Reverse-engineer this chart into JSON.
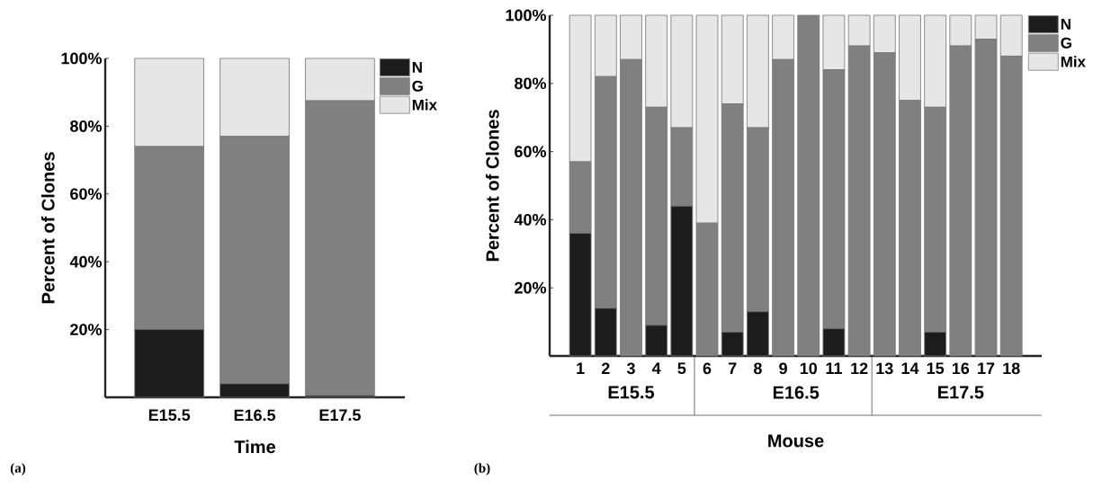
{
  "chart_data": [
    {
      "type": "bar",
      "stacked": true,
      "ylabel": "Percent of Clones",
      "xlabel": "Time",
      "categories": [
        "E15.5",
        "E16.5",
        "E17.5"
      ],
      "series": [
        {
          "name": "N",
          "color": "#1c1c1c",
          "values": [
            20,
            4,
            0.5
          ]
        },
        {
          "name": "G",
          "color": "#808080",
          "values": [
            54,
            73,
            87
          ]
        },
        {
          "name": "Mix",
          "color": "#e6e6e6",
          "values": [
            26,
            23,
            12.5
          ]
        }
      ],
      "ylim": [
        0,
        100
      ],
      "yticks": [
        {
          "value": 20,
          "label": "20%"
        },
        {
          "value": 40,
          "label": "40%"
        },
        {
          "value": 60,
          "label": "60%"
        },
        {
          "value": 80,
          "label": "80%"
        },
        {
          "value": 100,
          "label": "100%"
        }
      ],
      "legend": "top right",
      "annotations": [
        "(a)"
      ]
    },
    {
      "type": "bar",
      "stacked": true,
      "ylabel": "Percent of Clones",
      "xlabel": "Mouse",
      "categories": [
        "1",
        "2",
        "3",
        "4",
        "5",
        "6",
        "7",
        "8",
        "9",
        "10",
        "11",
        "12",
        "13",
        "14",
        "15",
        "16",
        "17",
        "18"
      ],
      "series": [
        {
          "name": "N",
          "color": "#1c1c1c",
          "values": [
            36,
            14,
            0,
            9,
            44,
            0,
            7,
            13,
            0,
            0,
            8,
            0,
            0,
            0,
            7,
            0,
            0,
            0
          ]
        },
        {
          "name": "G",
          "color": "#808080",
          "values": [
            21,
            68,
            87,
            64,
            23,
            39,
            67,
            54,
            87,
            100,
            76,
            91,
            89,
            75,
            66,
            91,
            93,
            88
          ]
        },
        {
          "name": "Mix",
          "color": "#e6e6e6",
          "values": [
            43,
            18,
            13,
            27,
            33,
            61,
            26,
            33,
            13,
            0,
            16,
            9,
            11,
            25,
            27,
            9,
            7,
            12
          ]
        }
      ],
      "ylim": [
        0,
        100
      ],
      "yticks": [
        {
          "value": 20,
          "label": "20%"
        },
        {
          "value": 40,
          "label": "40%"
        },
        {
          "value": 60,
          "label": "60%"
        },
        {
          "value": 80,
          "label": "80%"
        },
        {
          "value": 100,
          "label": "100%"
        }
      ],
      "legend": "top right",
      "annotations": [
        "E15.5",
        "E16.5",
        "E17.5",
        "(b)"
      ]
    }
  ]
}
